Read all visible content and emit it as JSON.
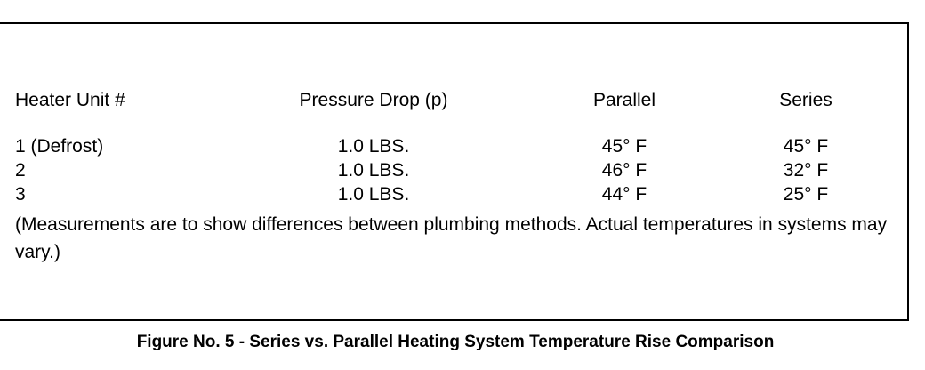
{
  "table": {
    "headers": [
      "Heater Unit #",
      "Pressure Drop (p)",
      "Parallel",
      "Series"
    ],
    "rows": [
      [
        "1 (Defrost)",
        "1.0 LBS.",
        "45° F",
        "45° F"
      ],
      [
        "2",
        "1.0 LBS.",
        "46° F",
        "32° F"
      ],
      [
        "3",
        "1.0 LBS.",
        "44° F",
        "25° F"
      ]
    ],
    "note": "(Measurements are to show differences between plumbing methods. Actual temperatures in systems may vary.)"
  },
  "caption": "Figure No. 5 - Series vs. Parallel Heating System Temperature Rise Comparison"
}
